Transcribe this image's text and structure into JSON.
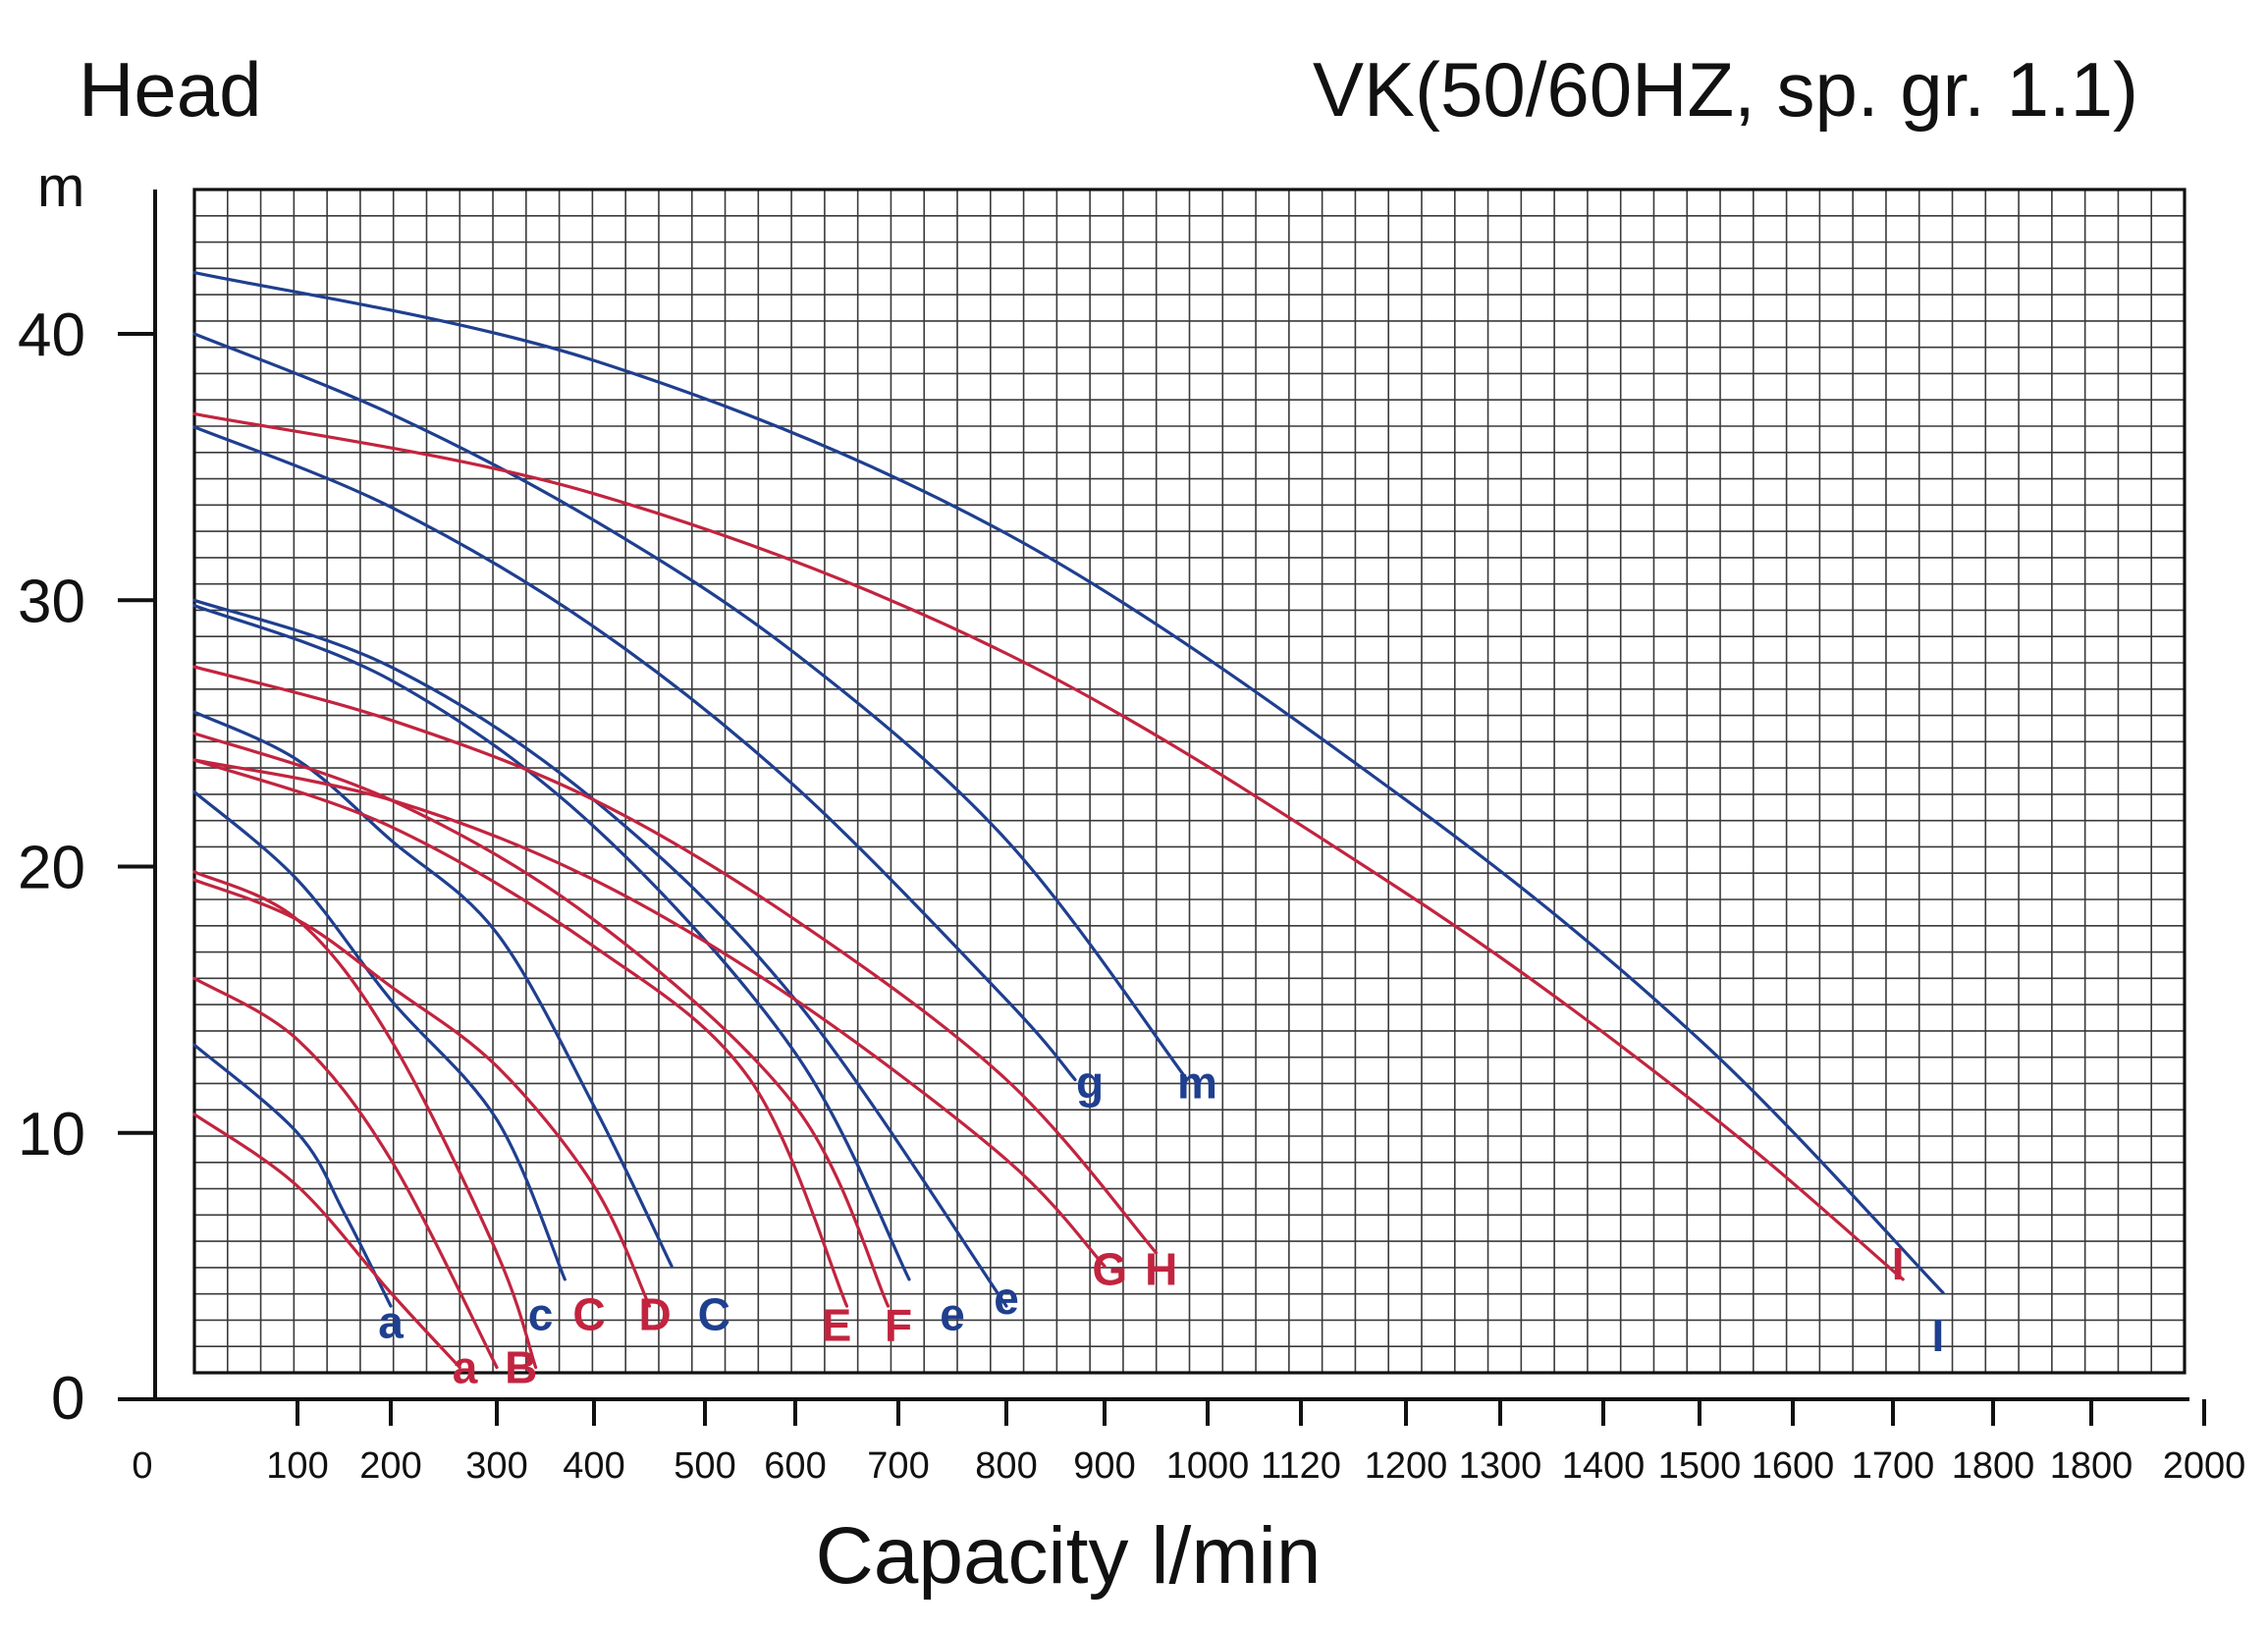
{
  "chart_data": {
    "type": "line",
    "title": "VK(50/60HZ, sp. gr. 1.1)",
    "ylabel": "Head",
    "yunit": "m",
    "xlabel": "Capacity l/min",
    "ylim": [
      0,
      45
    ],
    "grid": true,
    "y_ticks": [
      "0",
      "10",
      "20",
      "30",
      "40"
    ],
    "x_ticks": [
      "0",
      "100",
      "200",
      "300",
      "400",
      "500",
      "600",
      "700",
      "800",
      "900",
      "1000",
      "1120",
      "1200",
      "1300",
      "1400",
      "1500",
      "1600",
      "1700",
      "1800",
      "1800",
      "2000"
    ],
    "colors": {
      "blue": "#1f3f8f",
      "red": "#c2243f"
    },
    "series": [
      {
        "name": "a",
        "color": "blue",
        "x": [
          0,
          100,
          150,
          200
        ],
        "y": [
          13.3,
          10,
          7,
          3.5
        ]
      },
      {
        "name": "A",
        "color": "red",
        "x": [
          0,
          100,
          200,
          265
        ],
        "y": [
          10.7,
          8,
          4,
          1.2
        ]
      },
      {
        "name": "a",
        "color": "red",
        "x": [
          0,
          100,
          200,
          300
        ],
        "y": [
          15.8,
          13.5,
          9,
          1.2
        ]
      },
      {
        "name": "B",
        "color": "red",
        "x": [
          0,
          100,
          200,
          300,
          340
        ],
        "y": [
          19.8,
          18,
          13.5,
          5.5,
          1.2
        ]
      },
      {
        "name": "c",
        "color": "blue",
        "x": [
          0,
          100,
          200,
          300,
          370
        ],
        "y": [
          22.8,
          19.5,
          15,
          10.5,
          4.5
        ]
      },
      {
        "name": "C",
        "color": "blue",
        "x": [
          0,
          100,
          200,
          300,
          400,
          470
        ],
        "y": [
          25.8,
          24,
          21,
          17.5,
          11,
          5
        ]
      },
      {
        "name": "D",
        "color": "red",
        "x": [
          0,
          100,
          200,
          300,
          400,
          450
        ],
        "y": [
          19.5,
          18,
          15.5,
          12.5,
          8,
          3.5
        ]
      },
      {
        "name": "E",
        "color": "red",
        "x": [
          0,
          200,
          400,
          550,
          650
        ],
        "y": [
          24,
          21.5,
          17,
          12,
          3.5
        ]
      },
      {
        "name": "F",
        "color": "red",
        "x": [
          0,
          200,
          400,
          600,
          690
        ],
        "y": [
          25,
          22.5,
          18,
          11,
          3.5
        ]
      },
      {
        "name": "e",
        "color": "blue",
        "x": [
          0,
          200,
          400,
          600,
          710
        ],
        "y": [
          29.8,
          27,
          21.5,
          13,
          4.5
        ]
      },
      {
        "name": "e",
        "color": "blue",
        "x": [
          0,
          200,
          400,
          600,
          800
        ],
        "y": [
          30,
          27.5,
          22.5,
          15,
          3.5
        ]
      },
      {
        "name": "G",
        "color": "red",
        "x": [
          0,
          200,
          400,
          600,
          800,
          900
        ],
        "y": [
          24,
          22.5,
          19.5,
          15,
          9,
          5
        ]
      },
      {
        "name": "H",
        "color": "red",
        "x": [
          0,
          200,
          400,
          600,
          800,
          950
        ],
        "y": [
          27.5,
          25.5,
          22.5,
          18,
          12,
          5.5
        ]
      },
      {
        "name": "g",
        "color": "blue",
        "x": [
          0,
          200,
          400,
          600,
          800,
          870
        ],
        "y": [
          36.5,
          33.5,
          29,
          23,
          15,
          12
        ]
      },
      {
        "name": "m",
        "color": "blue",
        "x": [
          0,
          200,
          400,
          600,
          800,
          980
        ],
        "y": [
          40,
          37,
          33,
          28,
          21,
          12
        ]
      },
      {
        "name": "I",
        "color": "red",
        "x": [
          0,
          400,
          800,
          1200,
          1500,
          1710
        ],
        "y": [
          37,
          34,
          28,
          19,
          11,
          4.5
        ]
      },
      {
        "name": "I",
        "color": "blue",
        "x": [
          0,
          400,
          800,
          1200,
          1500,
          1750
        ],
        "y": [
          42.3,
          39,
          32.5,
          22.5,
          13.5,
          4
        ]
      }
    ],
    "labels": [
      {
        "text": "a",
        "color": "blue",
        "x": 200,
        "y": 2.3
      },
      {
        "text": "a",
        "color": "red",
        "x": 270,
        "y": 0.6
      },
      {
        "text": "B",
        "color": "red",
        "x": 325,
        "y": 0.6
      },
      {
        "text": "c",
        "color": "blue",
        "x": 345,
        "y": 2.6
      },
      {
        "text": "C",
        "color": "red",
        "x": 395,
        "y": 2.6
      },
      {
        "text": "D",
        "color": "red",
        "x": 455,
        "y": 2.6
      },
      {
        "text": "C",
        "color": "blue",
        "x": 510,
        "y": 2.6
      },
      {
        "text": "E",
        "color": "red",
        "x": 640,
        "y": 2.2
      },
      {
        "text": "F",
        "color": "red",
        "x": 700,
        "y": 2.2
      },
      {
        "text": "e",
        "color": "blue",
        "x": 750,
        "y": 2.6
      },
      {
        "text": "e",
        "color": "blue",
        "x": 800,
        "y": 3.2
      },
      {
        "text": "g",
        "color": "blue",
        "x": 885,
        "y": 11.3
      },
      {
        "text": "m",
        "color": "blue",
        "x": 990,
        "y": 11.3
      },
      {
        "text": "G",
        "color": "red",
        "x": 905,
        "y": 4.3
      },
      {
        "text": "H",
        "color": "red",
        "x": 955,
        "y": 4.3
      },
      {
        "text": "I",
        "color": "red",
        "x": 1705,
        "y": 4.5
      },
      {
        "text": "I",
        "color": "blue",
        "x": 1745,
        "y": 1.8
      }
    ]
  }
}
